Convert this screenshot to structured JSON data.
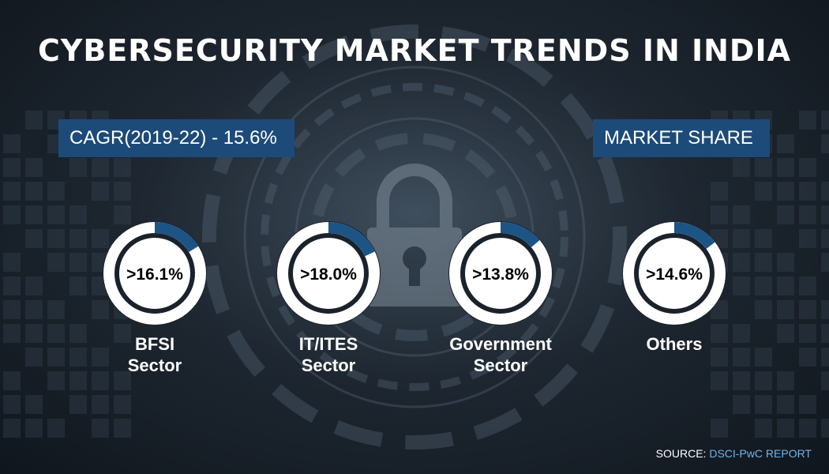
{
  "header": {
    "title": "CYBERSECURITY MARKET TRENDS IN INDIA"
  },
  "cagr": {
    "label": "CAGR(2019-22) - 15.6%"
  },
  "market_share": {
    "label": "MARKET SHARE"
  },
  "source": {
    "prefix": "SOURCE:",
    "name": "DSCI-PwC REPORT"
  },
  "icons": {
    "background": "padlock-icon"
  },
  "colors": {
    "accent": "#1d4b79",
    "ring_track": "#ffffff",
    "ring_fill": "#1d5486",
    "source_accent": "#6fb5e8"
  },
  "chart_data": {
    "type": "pie",
    "categories": [
      "BFSI Sector",
      "IT/ITES Sector",
      "Government Sector",
      "Others"
    ],
    "category_lines": [
      [
        "BFSI",
        "Sector"
      ],
      [
        "IT/ITES",
        "Sector"
      ],
      [
        "Government",
        "Sector"
      ],
      [
        "Others"
      ]
    ],
    "values": [
      16.1,
      18.0,
      13.8,
      14.6
    ],
    "value_labels": [
      ">16.1%",
      ">18.0%",
      ">13.8%",
      ">14.6%"
    ],
    "unit": "%"
  }
}
